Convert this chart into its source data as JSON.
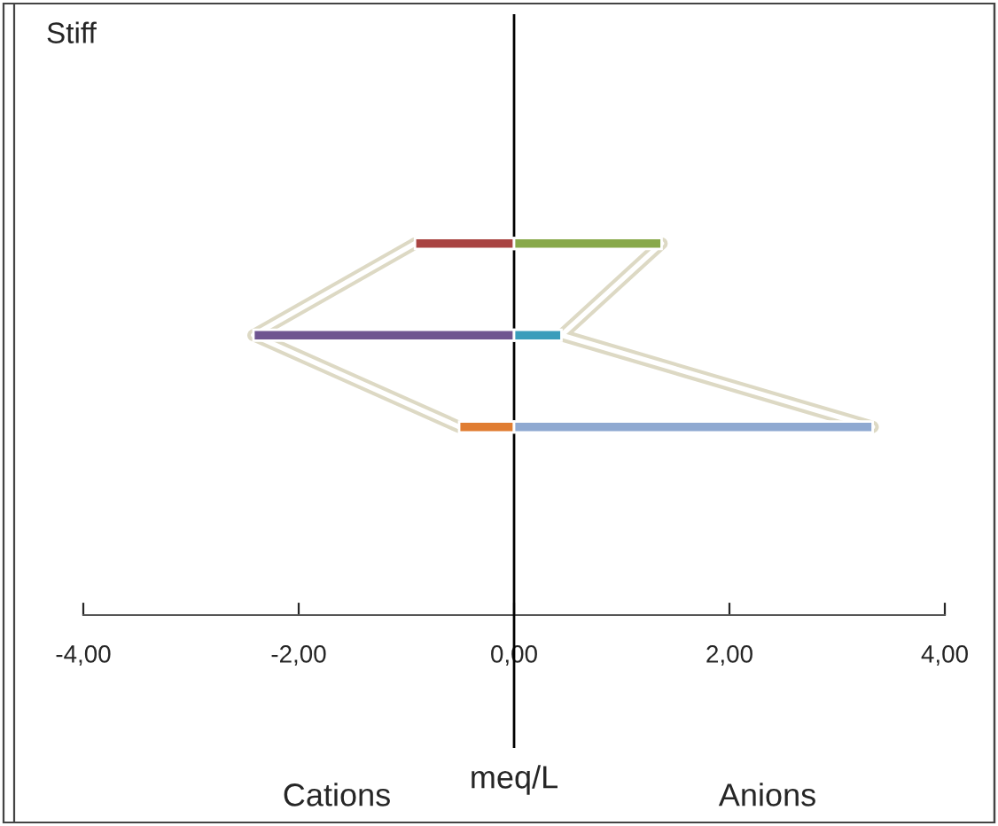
{
  "chart_data": {
    "type": "bar",
    "orientation": "horizontal",
    "title": "Stiff",
    "xlabel": "meq/L",
    "annotations": [
      "Cations",
      "Anions"
    ],
    "categories": [
      null,
      null,
      null,
      null,
      null,
      null,
      null,
      null
    ],
    "series": [
      {
        "values": [
          null,
          null,
          -0.92,
          -2.42,
          -0.51,
          null,
          null,
          null
        ],
        "colors": [
          null,
          null,
          "#a94442",
          "#6f5590",
          "#e07d32",
          null,
          null,
          null
        ]
      },
      {
        "values": [
          null,
          null,
          1.37,
          0.44,
          3.33,
          null,
          null,
          null
        ],
        "colors": [
          null,
          null,
          "#88a94a",
          "#3a9dbb",
          "#8fa9d1",
          null,
          null,
          null
        ]
      },
      {
        "type": "line",
        "values": [
          null,
          null,
          -0.92,
          -2.42,
          -0.51,
          null,
          null,
          null
        ],
        "color": "#ddd9c4"
      },
      {
        "type": "line",
        "values": [
          null,
          null,
          1.37,
          0.44,
          3.33,
          null,
          null,
          null
        ],
        "color": "#ddd9c4"
      }
    ],
    "xlim": [
      -4,
      4
    ],
    "xticks": [
      {
        "value": -4,
        "label": "-4,00"
      },
      {
        "value": -2,
        "label": "-2,00"
      },
      {
        "value": 0,
        "label": "0,00"
      },
      {
        "value": 2,
        "label": "2,00"
      },
      {
        "value": 4,
        "label": "4,00"
      }
    ],
    "ref_lines": [
      {
        "axis": "x",
        "value": 0,
        "color": "#000000"
      }
    ],
    "grid": false,
    "legend": false
  }
}
